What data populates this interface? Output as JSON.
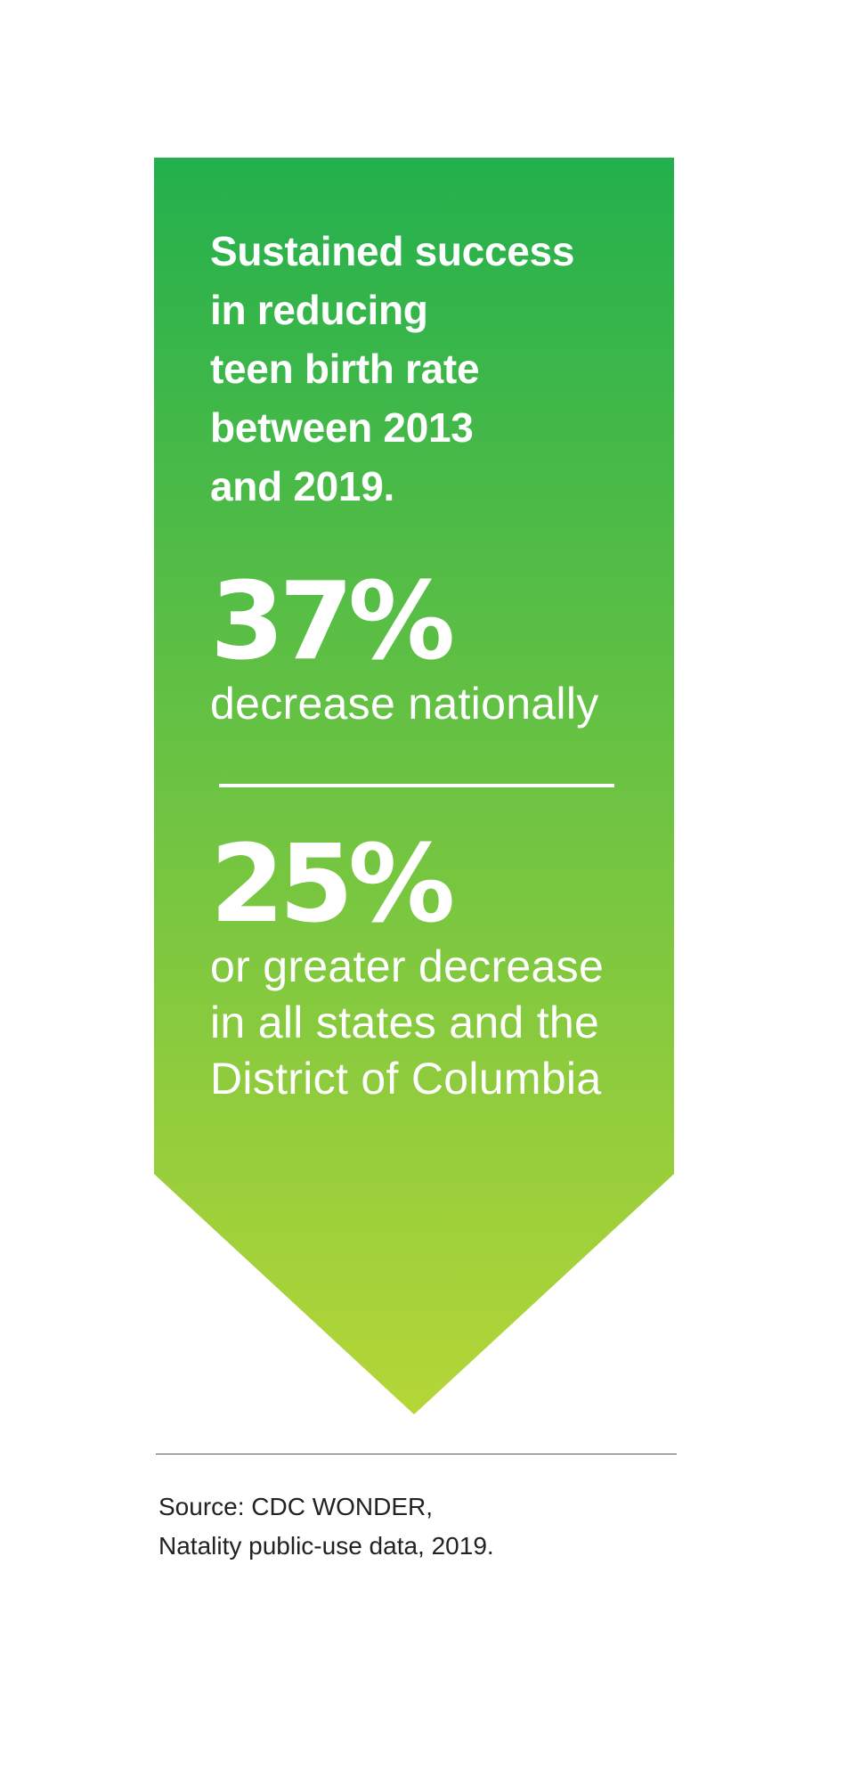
{
  "headline": {
    "lines": [
      "Sustained success",
      "in reducing",
      "teen birth rate",
      "between 2013",
      "and 2019."
    ]
  },
  "stats": [
    {
      "value": "37%",
      "description": [
        "decrease nationally"
      ]
    },
    {
      "value": "25%",
      "description": [
        "or greater decrease",
        "in all states and the",
        "District of Columbia"
      ]
    }
  ],
  "source": {
    "lines": [
      "Source: CDC WONDER,",
      "Natality public-use data, 2019."
    ]
  },
  "colors": {
    "gradient_top": "#23b04d",
    "gradient_bottom": "#b5d637",
    "text": "#ffffff",
    "rule": "#555555"
  }
}
